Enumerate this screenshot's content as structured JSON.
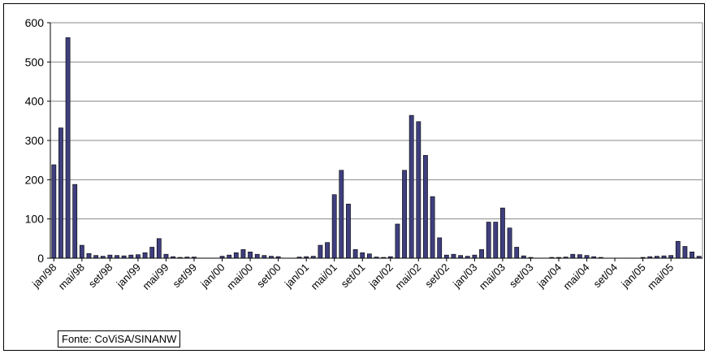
{
  "chart_data": {
    "type": "bar",
    "title": "",
    "xlabel": "",
    "ylabel": "",
    "ylim": [
      0,
      600
    ],
    "yticks": [
      0,
      100,
      200,
      300,
      400,
      500,
      600
    ],
    "grid": true,
    "bar_color": "#3f3f7f",
    "tick_labels": [
      "jan/98",
      "mai/98",
      "set/98",
      "jan/99",
      "mai/99",
      "set/99",
      "jan/00",
      "mai/00",
      "set/00",
      "jan/01",
      "mai/01",
      "set/01",
      "jan/02",
      "mai/02",
      "set/02",
      "jan/03",
      "mai/03",
      "set/03",
      "jan/04",
      "mai/04",
      "set/04",
      "jan/05",
      "mai/05"
    ],
    "tick_label_indices": [
      0,
      4,
      8,
      12,
      16,
      20,
      24,
      28,
      32,
      36,
      40,
      44,
      48,
      52,
      56,
      60,
      64,
      68,
      72,
      76,
      80,
      84,
      88
    ],
    "values": [
      238,
      332,
      562,
      188,
      33,
      12,
      7,
      5,
      8,
      7,
      6,
      8,
      9,
      14,
      28,
      50,
      10,
      4,
      2,
      3,
      3,
      0,
      0,
      0,
      5,
      8,
      14,
      22,
      16,
      10,
      7,
      5,
      4,
      0,
      0,
      3,
      4,
      5,
      33,
      40,
      162,
      224,
      138,
      22,
      14,
      11,
      3,
      2,
      4,
      87,
      224,
      364,
      348,
      262,
      157,
      52,
      8,
      10,
      7,
      5,
      8,
      22,
      92,
      92,
      128,
      77,
      28,
      6,
      2,
      0,
      0,
      2,
      1,
      3,
      10,
      9,
      7,
      4,
      2,
      0,
      0,
      0,
      0,
      0,
      1,
      4,
      5,
      6,
      7,
      43,
      30,
      16,
      5
    ]
  },
  "source_note": "Fonte: CoViSA/SINANW"
}
